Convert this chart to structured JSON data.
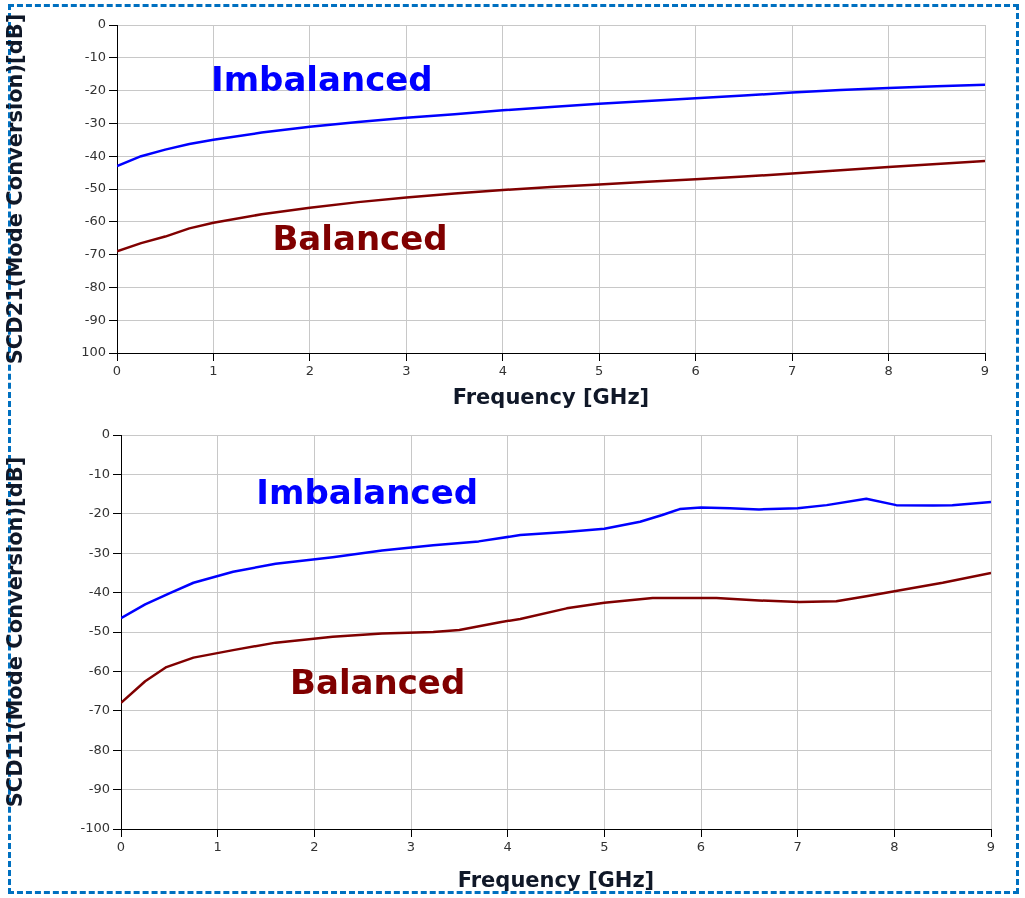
{
  "chart_data": [
    {
      "type": "line",
      "xlabel": "Frequency [GHz]",
      "ylabel": "SCD21(Mode Conversion)[dB]",
      "xlim": [
        0,
        9
      ],
      "xticks": [
        0,
        1,
        2,
        3,
        4,
        5,
        6,
        7,
        8,
        9
      ],
      "ylim": [
        -100,
        0
      ],
      "yticks": [
        0,
        -10,
        -20,
        -30,
        -40,
        -50,
        -60,
        -70,
        -80,
        -90,
        {
          "value": -100,
          "label": "100"
        }
      ],
      "grid": true,
      "marker": "none",
      "series": [
        {
          "name": "Imbalanced",
          "color": "#0000ff",
          "x": [
            0,
            0.25,
            0.5,
            0.75,
            1,
            1.5,
            2,
            2.5,
            3,
            3.5,
            4,
            4.5,
            5,
            5.5,
            6,
            6.5,
            7,
            7.5,
            8,
            8.5,
            9
          ],
          "values": [
            -43,
            -40,
            -38,
            -36.3,
            -35,
            -32.8,
            -31,
            -29.6,
            -28.3,
            -27.2,
            -26,
            -25,
            -24,
            -23.2,
            -22.3,
            -21.5,
            -20.6,
            -19.8,
            -19.2,
            -18.7,
            -18.2
          ]
        },
        {
          "name": "Balanced",
          "color": "#800000",
          "x": [
            0,
            0.25,
            0.5,
            0.75,
            1,
            1.5,
            2,
            2.5,
            3,
            3.5,
            4,
            4.5,
            5,
            5.5,
            6,
            6.5,
            7,
            7.5,
            8,
            8.5,
            9
          ],
          "values": [
            -69,
            -66.5,
            -64.5,
            -62,
            -60.3,
            -57.7,
            -55.7,
            -54,
            -52.6,
            -51.4,
            -50.3,
            -49.4,
            -48.6,
            -47.8,
            -47,
            -46.2,
            -45.3,
            -44.3,
            -43.3,
            -42.4,
            -41.5
          ]
        }
      ]
    },
    {
      "type": "line",
      "xlabel": "Frequency [GHz]",
      "ylabel": "SCD11(Mode Conversion)[dB]",
      "xlim": [
        0,
        9
      ],
      "xticks": [
        0,
        1,
        2,
        3,
        4,
        5,
        6,
        7,
        8,
        9
      ],
      "ylim": [
        -100,
        0
      ],
      "yticks": [
        0,
        -10,
        -20,
        -30,
        -40,
        -50,
        -60,
        -70,
        -80,
        -90,
        -100
      ],
      "grid": true,
      "marker": "none",
      "series": [
        {
          "name": "Imbalanced",
          "color": "#0000ff",
          "x": [
            0,
            0.25,
            0.5,
            0.75,
            1.16,
            1.6,
            2.19,
            2.7,
            3.23,
            3.7,
            4.13,
            4.6,
            5,
            5.37,
            5.6,
            5.78,
            6,
            6.3,
            6.6,
            7,
            7.3,
            7.71,
            8.02,
            8.4,
            8.6,
            9
          ],
          "values": [
            -46.5,
            -43,
            -40.2,
            -37.5,
            -34.7,
            -32.7,
            -31,
            -29.3,
            -28,
            -27,
            -25.4,
            -24.6,
            -23.8,
            -22,
            -20.3,
            -18.8,
            -18.4,
            -18.6,
            -18.9,
            -18.6,
            -17.8,
            -16.2,
            -17.8,
            -17.9,
            -17.8,
            -17
          ]
        },
        {
          "name": "Balanced",
          "color": "#800000",
          "x": [
            0,
            0.25,
            0.47,
            0.75,
            1.16,
            1.6,
            2.19,
            2.7,
            3.23,
            3.5,
            3.92,
            4.13,
            4.61,
            5,
            5.5,
            6.16,
            6.6,
            7.02,
            7.4,
            7.71,
            8.06,
            8.5,
            9
          ],
          "values": [
            -68,
            -62.5,
            -58.9,
            -56.5,
            -54.6,
            -52.7,
            -51.2,
            -50.4,
            -50,
            -49.5,
            -47.5,
            -46.7,
            -44,
            -42.6,
            -41.4,
            -41.4,
            -42,
            -42.4,
            -42.2,
            -40.9,
            -39.4,
            -37.5,
            -35
          ]
        }
      ]
    }
  ]
}
